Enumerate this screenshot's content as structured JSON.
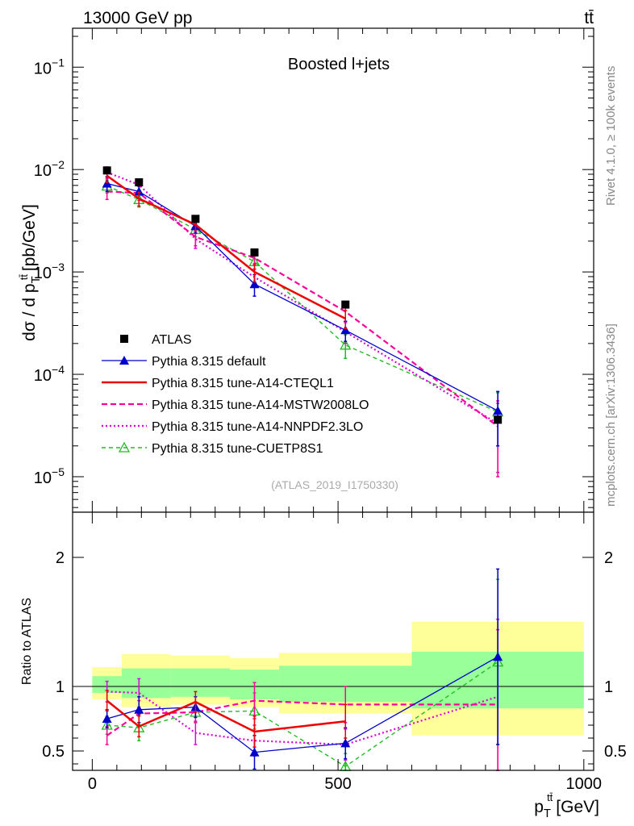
{
  "header": {
    "left": "13000 GeV pp",
    "right": "tt̄"
  },
  "side_labels": {
    "rivet": "Rivet 4.1.0, ≥ 100k events",
    "source": "mcplots.cern.ch [arXiv:1306.3436]"
  },
  "colors": {
    "atlas": "#000000",
    "default": "#0000cc",
    "cteql1": "#ee0000",
    "mstw": "#ff0099",
    "nnpdf": "#dd00dd",
    "cuetp8s1": "#22bb22",
    "band_outer": "#ffff99",
    "band_inner": "#99ff99"
  },
  "chart_data": [
    {
      "type": "line",
      "panel": "main",
      "title": "Boosted l+jets",
      "analysis_id": "(ATLAS_2019_I1750330)",
      "ylabel_main": "dσ / d p",
      "ylabel_sub": "T",
      "ylabel_sup": "tt̄",
      "ylabel_unit": "[pb/GeV]",
      "yscale": "log",
      "ylim": [
        4.5e-06,
        0.24
      ],
      "xlim": [
        -40,
        1020
      ],
      "y_tick_labels": [
        {
          "value": 1e-05,
          "base": "10",
          "exp": "−5"
        },
        {
          "value": 0.0001,
          "base": "10",
          "exp": "−4"
        },
        {
          "value": 0.001,
          "base": "10",
          "exp": "−3"
        },
        {
          "value": 0.01,
          "base": "10",
          "exp": "−2"
        },
        {
          "value": 0.1,
          "base": "10",
          "exp": "−1"
        }
      ],
      "x": [
        30,
        95,
        210,
        330,
        515,
        825
      ],
      "series": [
        {
          "name": "ATLAS",
          "key": "atlas",
          "values": [
            0.0098,
            0.0075,
            0.0033,
            0.00155,
            0.00048,
            3.6e-05
          ]
        },
        {
          "name": "Pythia 8.315 default",
          "key": "default",
          "values": [
            0.0073,
            0.0061,
            0.0028,
            0.00076,
            0.00027,
            4.4e-05
          ],
          "err": [
            0.0012,
            0.0009,
            0.0004,
            0.00018,
            6e-05,
            2.4e-05
          ]
        },
        {
          "name": "Pythia 8.315 tune-A14-CTEQL1",
          "key": "cteql1",
          "values": [
            0.0087,
            0.0052,
            0.0029,
            0.001,
            0.00035,
            null
          ],
          "err": [
            0.0012,
            0.0008,
            0.0004,
            0.0002,
            7e-05,
            null
          ]
        },
        {
          "name": "Pythia 8.315 tune-A14-MSTW2008LO",
          "key": "mstw",
          "values": [
            0.0061,
            0.0059,
            0.0022,
            0.00137,
            0.00041,
            3.1e-05
          ],
          "err": [
            0.001,
            0.0009,
            0.0004,
            0.0002,
            8e-05,
            2.1e-05
          ]
        },
        {
          "name": "Pythia 8.315 tune-A14-NNPDF2.3LO",
          "key": "nnpdf",
          "values": [
            0.0094,
            0.0071,
            0.0021,
            0.00089,
            0.00026,
            3.3e-05
          ],
          "err": [
            0.0012,
            0.001,
            0.0004,
            0.00018,
            6e-05,
            2.2e-05
          ]
        },
        {
          "name": "Pythia 8.315 tune-CUETP8S1",
          "key": "cuetp8s1",
          "values": [
            0.0069,
            0.0051,
            0.0026,
            0.00126,
            0.000193,
            4.3e-05
          ],
          "err": [
            0.001,
            0.0008,
            0.0004,
            0.0002,
            5e-05,
            2.3e-05
          ]
        }
      ]
    },
    {
      "type": "line",
      "panel": "ratio",
      "ylabel": "Ratio to ATLAS",
      "xlabel_main": "p",
      "xlabel_sub": "T",
      "xlabel_sup": "tt̄",
      "xlabel_unit": "[GeV]",
      "ylim": [
        0.35,
        2.35
      ],
      "xlim": [
        -40,
        1020
      ],
      "y_ticks": [
        0.5,
        1,
        2
      ],
      "y_tick_labels": [
        "0.5",
        "1",
        "2"
      ],
      "x_ticks": [
        0,
        500,
        1000
      ],
      "x_tick_labels": [
        "0",
        "500",
        "1000"
      ],
      "bins": [
        0,
        60,
        160,
        280,
        380,
        650,
        1000
      ],
      "band_outer": [
        [
          0.9,
          1.15
        ],
        [
          0.84,
          1.25
        ],
        [
          0.86,
          1.24
        ],
        [
          0.84,
          1.22
        ],
        [
          0.79,
          1.26
        ],
        [
          0.62,
          1.5
        ]
      ],
      "band_inner": [
        [
          0.95,
          1.08
        ],
        [
          0.91,
          1.14
        ],
        [
          0.92,
          1.14
        ],
        [
          0.9,
          1.13
        ],
        [
          0.88,
          1.16
        ],
        [
          0.83,
          1.27
        ]
      ],
      "x": [
        30,
        95,
        210,
        330,
        515,
        825
      ],
      "series": [
        {
          "key": "default",
          "values": [
            0.75,
            0.82,
            0.84,
            0.49,
            0.56,
            1.23
          ],
          "err": [
            0.07,
            0.1,
            0.08,
            0.13,
            0.12,
            0.68
          ]
        },
        {
          "key": "cteql1",
          "values": [
            0.89,
            0.69,
            0.88,
            0.65,
            0.73,
            null
          ],
          "err": [
            0.08,
            0.08,
            0.08,
            0.12,
            0.13,
            null
          ]
        },
        {
          "key": "mstw",
          "values": [
            0.62,
            0.79,
            0.8,
            0.89,
            0.86,
            0.86
          ],
          "err": [
            0.07,
            0.1,
            0.08,
            0.14,
            0.14,
            0.58
          ]
        },
        {
          "key": "nnpdf",
          "values": [
            0.96,
            0.95,
            0.64,
            0.58,
            0.55,
            0.92
          ],
          "err": [
            0.08,
            0.11,
            0.09,
            0.12,
            0.12,
            0.6
          ]
        },
        {
          "key": "cuetp8s1",
          "values": [
            0.7,
            0.68,
            0.8,
            0.81,
            0.38,
            1.19
          ],
          "err": [
            0.07,
            0.1,
            0.08,
            0.14,
            0.1,
            0.64
          ]
        }
      ]
    }
  ]
}
